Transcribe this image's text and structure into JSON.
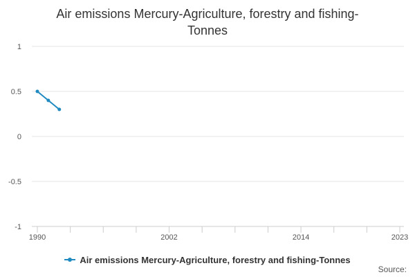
{
  "chart_data": {
    "type": "line",
    "title_lines": [
      "Air emissions Mercury-Agriculture, forestry and fishing-",
      "Tonnes"
    ],
    "xlabel": "",
    "ylabel": "",
    "xlim": [
      1990,
      2023
    ],
    "ylim": [
      -1,
      1
    ],
    "y_ticks": [
      1,
      0.5,
      0,
      -0.5,
      -1
    ],
    "y_tick_labels": [
      "1",
      "0.5",
      "0",
      "-0.5",
      "-1"
    ],
    "x_tick_labels": [
      {
        "year": 1990,
        "label": "1990"
      },
      {
        "year": 2002,
        "label": "2002"
      },
      {
        "year": 2014,
        "label": "2014"
      },
      {
        "year": 2023,
        "label": "2023"
      }
    ],
    "x_minor_ticks": [
      1990,
      1993,
      1996,
      1999,
      2002,
      2005,
      2008,
      2011,
      2014,
      2017,
      2020,
      2023
    ],
    "grid": true,
    "legend_position": "bottom",
    "series": [
      {
        "name": "Air emissions Mercury-Agriculture, forestry and fishing-Tonnes",
        "color": "#1f8ac0",
        "x": [
          1990,
          1991,
          1992
        ],
        "y": [
          0.5,
          0.4,
          0.3
        ]
      }
    ]
  },
  "source_label": "Source:"
}
